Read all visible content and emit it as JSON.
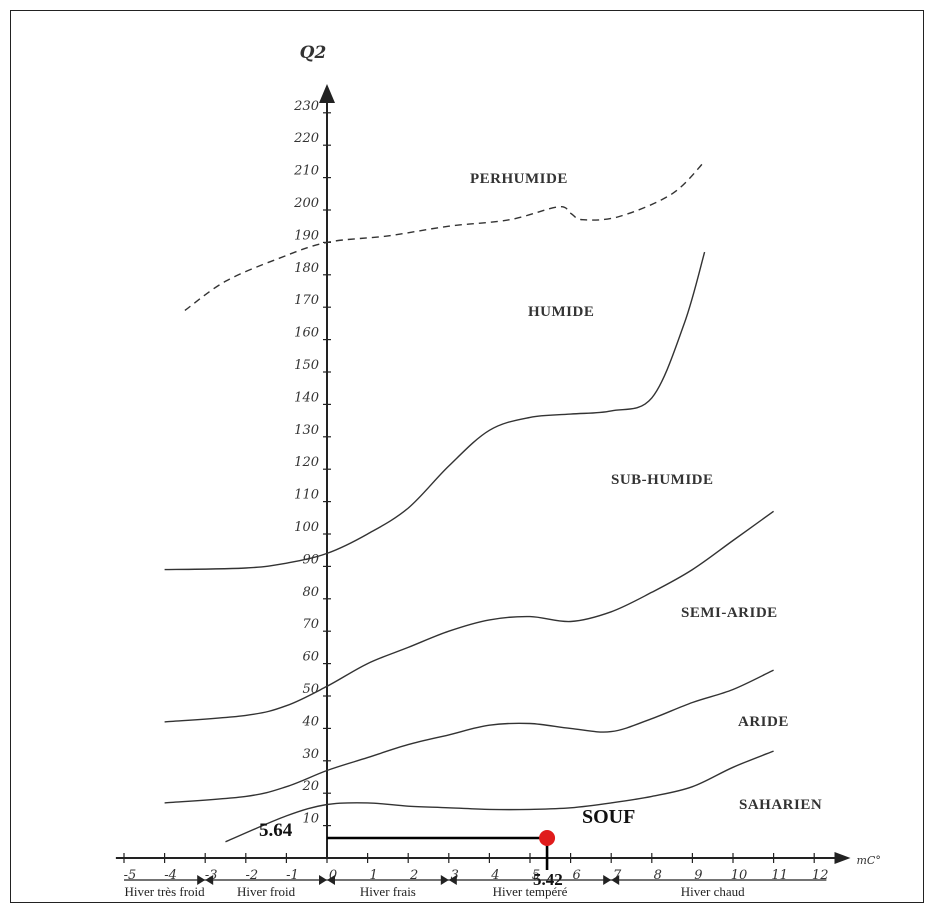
{
  "chart_data": {
    "type": "line",
    "ylabel": "Q2",
    "xlabel": "mC°",
    "xlim": [
      -5,
      12
    ],
    "y_ticks": [
      {
        "label": "10",
        "value": 10
      },
      {
        "label": "20",
        "value": 20
      },
      {
        "label": "30",
        "value": 30
      },
      {
        "label": "40",
        "value": 40
      },
      {
        "label": "50",
        "value": 50
      },
      {
        "label": "60",
        "value": 60
      },
      {
        "label": "70",
        "value": 70
      },
      {
        "label": "80",
        "value": 80
      },
      {
        "label": "90",
        "value": 90
      },
      {
        "label": "100",
        "value": 100
      },
      {
        "label": "110",
        "value": 110
      },
      {
        "label": "120",
        "value": 120
      },
      {
        "label": "130",
        "value": 130
      },
      {
        "label": "140",
        "value": 140
      },
      {
        "label": "150",
        "value": 150
      },
      {
        "label": "160",
        "value": 160
      },
      {
        "label": "170",
        "value": 170
      },
      {
        "label": "180",
        "value": 180
      },
      {
        "label": "190",
        "value": 190
      },
      {
        "label": "200",
        "value": 200
      },
      {
        "label": "210",
        "value": 210
      },
      {
        "label": "220",
        "value": 220
      },
      {
        "label": "230",
        "value": 230
      }
    ],
    "x_ticks": [
      -5,
      -4,
      -3,
      -2,
      -1,
      0,
      1,
      2,
      3,
      4,
      5,
      6,
      7,
      8,
      9,
      10,
      11,
      12
    ],
    "zones": [
      "PERHUMIDE",
      "HUMIDE",
      "SUB-HUMIDE",
      "SEMI-ARIDE",
      "ARIDE",
      "SAHARIEN"
    ],
    "boundaries": [
      {
        "style": "dashed",
        "points": [
          [
            -3.5,
            169
          ],
          [
            -2.5,
            178
          ],
          [
            -1.2,
            185
          ],
          [
            0,
            190
          ],
          [
            1.5,
            192
          ],
          [
            3,
            195
          ],
          [
            4.5,
            197
          ],
          [
            5.7,
            201
          ],
          [
            6,
            199
          ],
          [
            6.3,
            197
          ],
          [
            7.2,
            198
          ],
          [
            8.5,
            205
          ],
          [
            9.3,
            215
          ]
        ]
      },
      {
        "style": "solid",
        "points": [
          [
            -4,
            89
          ],
          [
            -2,
            89.5
          ],
          [
            -1,
            91
          ],
          [
            0,
            94
          ],
          [
            1,
            100
          ],
          [
            2,
            108
          ],
          [
            3,
            121
          ],
          [
            4,
            132
          ],
          [
            5,
            136
          ],
          [
            6,
            137
          ],
          [
            7,
            138
          ],
          [
            8,
            142
          ],
          [
            8.8,
            165
          ],
          [
            9.3,
            187
          ]
        ]
      },
      {
        "style": "solid",
        "points": [
          [
            -4,
            42
          ],
          [
            -2,
            44
          ],
          [
            -1,
            47
          ],
          [
            0,
            53
          ],
          [
            1,
            60
          ],
          [
            2,
            65
          ],
          [
            3,
            70
          ],
          [
            4,
            73.5
          ],
          [
            5,
            74.5
          ],
          [
            6,
            73
          ],
          [
            7,
            76
          ],
          [
            8,
            82
          ],
          [
            9,
            89
          ],
          [
            10,
            98
          ],
          [
            11,
            107
          ]
        ]
      },
      {
        "style": "solid",
        "points": [
          [
            -4,
            17
          ],
          [
            -2,
            19
          ],
          [
            -1,
            22
          ],
          [
            0,
            27
          ],
          [
            1,
            31
          ],
          [
            2,
            35
          ],
          [
            3,
            38
          ],
          [
            4,
            41
          ],
          [
            5,
            41.5
          ],
          [
            6,
            40
          ],
          [
            7,
            39
          ],
          [
            8,
            43
          ],
          [
            9,
            48
          ],
          [
            10,
            52
          ],
          [
            11,
            58
          ]
        ]
      },
      {
        "style": "solid",
        "points": [
          [
            -2.5,
            5
          ],
          [
            -1,
            13
          ],
          [
            0,
            16.5
          ],
          [
            1,
            17
          ],
          [
            2,
            16
          ],
          [
            3,
            15.5
          ],
          [
            4,
            15
          ],
          [
            5,
            15
          ],
          [
            6,
            15.5
          ],
          [
            7,
            17
          ],
          [
            8,
            19
          ],
          [
            9,
            22
          ],
          [
            10,
            28
          ],
          [
            11,
            33
          ]
        ]
      }
    ],
    "station": {
      "name": "SOUF",
      "x": 5.42,
      "y": 5.64,
      "x_label": "5.42",
      "y_label": "5.64"
    },
    "winter_bands": [
      {
        "label": "Hiver très froid",
        "from": -5,
        "to": -3
      },
      {
        "label": "Hiver froid",
        "from": -3,
        "to": 0
      },
      {
        "label": "Hiver frais",
        "from": 0,
        "to": 3
      },
      {
        "label": "Hiver tempéré",
        "from": 3,
        "to": 7
      },
      {
        "label": "Hiver chaud",
        "from": 7,
        "to": 12
      }
    ]
  }
}
